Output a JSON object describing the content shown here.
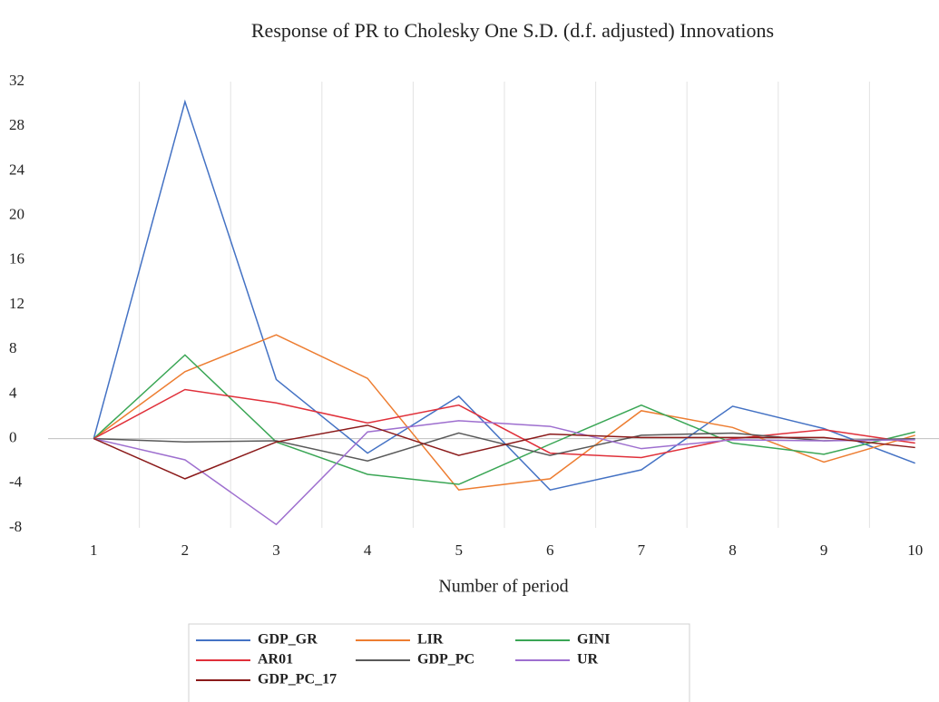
{
  "chart_data": {
    "type": "line",
    "title": "Response of PR to Cholesky One S.D. (d.f. adjusted) Innovations",
    "x_label": "Number of period",
    "categories": [
      "1",
      "2",
      "3",
      "4",
      "5",
      "6",
      "7",
      "8",
      "9",
      "10"
    ],
    "series": [
      {
        "name": "GDP_GR",
        "color": "#4472c4",
        "values": [
          0,
          30.2,
          5.3,
          -1.3,
          3.8,
          -4.6,
          -2.8,
          2.9,
          0.9,
          -2.2
        ]
      },
      {
        "name": "LIR",
        "color": "#ed7d31",
        "values": [
          0,
          6,
          9.3,
          5.4,
          -4.6,
          -3.6,
          2.5,
          1,
          -2.1,
          0.3
        ]
      },
      {
        "name": "GINI",
        "color": "#3aa655",
        "values": [
          0,
          7.5,
          -0.3,
          -3.2,
          -4.1,
          -0.5,
          3,
          -0.4,
          -1.4,
          0.6
        ]
      },
      {
        "name": "AR01",
        "color": "#e0303a",
        "values": [
          0,
          4.4,
          3.2,
          1.4,
          3,
          -1.3,
          -1.7,
          0,
          0.8,
          -0.4
        ]
      },
      {
        "name": "GDP_PC",
        "color": "#595959",
        "values": [
          0,
          -0.3,
          -0.2,
          -2,
          0.5,
          -1.5,
          0.3,
          0.5,
          -0.2,
          0
        ]
      },
      {
        "name": "UR",
        "color": "#9e6fcf",
        "values": [
          0,
          -1.9,
          -7.7,
          0.6,
          1.6,
          1.1,
          -0.9,
          -0.1,
          -0.2,
          -0.1
        ]
      },
      {
        "name": "GDP_PC_17",
        "color": "#8b1a1a",
        "values": [
          0,
          -3.6,
          -0.3,
          1.2,
          -1.5,
          0.4,
          0.1,
          0.1,
          0.1,
          -0.8
        ]
      }
    ],
    "ylim": [
      -8,
      32
    ],
    "yticks": [
      -8,
      -4,
      0,
      4,
      8,
      12,
      16,
      20,
      24,
      28,
      32
    ],
    "grid": "vertical",
    "legend": "bottom"
  }
}
